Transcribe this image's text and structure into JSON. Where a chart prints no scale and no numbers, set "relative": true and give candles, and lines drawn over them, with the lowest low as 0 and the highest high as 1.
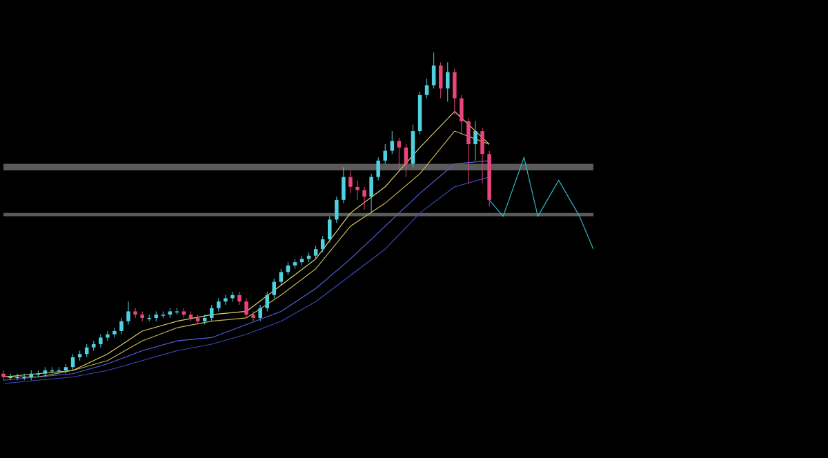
{
  "chart_data": {
    "type": "candlestick",
    "relative": true,
    "categories": [
      null,
      null,
      null,
      null,
      null,
      null,
      null,
      null,
      null,
      null,
      null,
      null,
      null,
      null,
      null,
      null,
      null,
      null,
      null,
      null,
      null,
      null,
      null,
      null,
      null,
      null,
      null,
      null,
      null,
      null,
      null,
      null,
      null,
      null,
      null,
      null,
      null,
      null,
      null,
      null,
      null,
      null,
      null,
      null,
      null,
      null,
      null,
      null,
      null,
      null,
      null,
      null,
      null,
      null,
      null,
      null,
      null,
      null,
      null,
      null,
      null,
      null,
      null,
      null,
      null,
      null,
      null,
      null,
      null,
      null,
      null,
      null,
      null,
      null,
      null,
      null,
      null,
      null,
      null,
      null,
      null,
      null,
      null,
      null,
      null,
      null
    ],
    "ohlc": [
      [
        0.02,
        0.03,
        0,
        0.01
      ],
      [
        0.01,
        0.02,
        0,
        0.01
      ],
      [
        0.01,
        0.02,
        0,
        0.01
      ],
      [
        0.01,
        0.02,
        0,
        0.01
      ],
      [
        0.01,
        0.03,
        0,
        0.02
      ],
      [
        0.02,
        0.03,
        0.01,
        0.02
      ],
      [
        0.02,
        0.04,
        0.01,
        0.03
      ],
      [
        0.03,
        0.04,
        0.02,
        0.03
      ],
      [
        0.03,
        0.04,
        0.02,
        0.03
      ],
      [
        0.03,
        0.05,
        0.02,
        0.04
      ],
      [
        0.04,
        0.08,
        0.03,
        0.07
      ],
      [
        0.07,
        0.09,
        0.06,
        0.08
      ],
      [
        0.08,
        0.11,
        0.07,
        0.1
      ],
      [
        0.1,
        0.12,
        0.09,
        0.11
      ],
      [
        0.11,
        0.14,
        0.1,
        0.13
      ],
      [
        0.13,
        0.15,
        0.12,
        0.14
      ],
      [
        0.14,
        0.16,
        0.13,
        0.15
      ],
      [
        0.15,
        0.19,
        0.14,
        0.18
      ],
      [
        0.18,
        0.24,
        0.17,
        0.21
      ],
      [
        0.21,
        0.22,
        0.19,
        0.2
      ],
      [
        0.2,
        0.21,
        0.18,
        0.19
      ],
      [
        0.19,
        0.2,
        0.18,
        0.19
      ],
      [
        0.19,
        0.21,
        0.18,
        0.2
      ],
      [
        0.2,
        0.21,
        0.19,
        0.2
      ],
      [
        0.2,
        0.22,
        0.19,
        0.21
      ],
      [
        0.21,
        0.22,
        0.2,
        0.21
      ],
      [
        0.21,
        0.22,
        0.19,
        0.2
      ],
      [
        0.2,
        0.21,
        0.18,
        0.19
      ],
      [
        0.19,
        0.2,
        0.17,
        0.18
      ],
      [
        0.18,
        0.2,
        0.17,
        0.19
      ],
      [
        0.19,
        0.23,
        0.18,
        0.22
      ],
      [
        0.22,
        0.25,
        0.21,
        0.24
      ],
      [
        0.24,
        0.26,
        0.23,
        0.25
      ],
      [
        0.25,
        0.27,
        0.24,
        0.26
      ],
      [
        0.26,
        0.27,
        0.23,
        0.24
      ],
      [
        0.24,
        0.25,
        0.19,
        0.2
      ],
      [
        0.2,
        0.21,
        0.18,
        0.19
      ],
      [
        0.19,
        0.23,
        0.18,
        0.22
      ],
      [
        0.22,
        0.27,
        0.21,
        0.26
      ],
      [
        0.26,
        0.31,
        0.25,
        0.3
      ],
      [
        0.3,
        0.34,
        0.29,
        0.33
      ],
      [
        0.33,
        0.36,
        0.32,
        0.35
      ],
      [
        0.35,
        0.37,
        0.34,
        0.36
      ],
      [
        0.36,
        0.38,
        0.35,
        0.37
      ],
      [
        0.37,
        0.39,
        0.36,
        0.38
      ],
      [
        0.38,
        0.41,
        0.37,
        0.4
      ],
      [
        0.4,
        0.44,
        0.39,
        0.43
      ],
      [
        0.43,
        0.5,
        0.42,
        0.49
      ],
      [
        0.49,
        0.56,
        0.48,
        0.55
      ],
      [
        0.55,
        0.65,
        0.54,
        0.62
      ],
      [
        0.62,
        0.64,
        0.57,
        0.59
      ],
      [
        0.59,
        0.61,
        0.55,
        0.58
      ],
      [
        0.58,
        0.59,
        0.52,
        0.56
      ],
      [
        0.56,
        0.63,
        0.51,
        0.62
      ],
      [
        0.62,
        0.68,
        0.61,
        0.67
      ],
      [
        0.67,
        0.72,
        0.66,
        0.7
      ],
      [
        0.7,
        0.76,
        0.69,
        0.73
      ],
      [
        0.73,
        0.74,
        0.64,
        0.71
      ],
      [
        0.71,
        0.72,
        0.62,
        0.66
      ],
      [
        0.66,
        0.78,
        0.65,
        0.76
      ],
      [
        0.76,
        0.88,
        0.75,
        0.87
      ],
      [
        0.87,
        0.92,
        0.86,
        0.9
      ],
      [
        0.9,
        1,
        0.89,
        0.96
      ],
      [
        0.96,
        0.97,
        0.86,
        0.89
      ],
      [
        0.89,
        0.97,
        0.85,
        0.94
      ],
      [
        0.94,
        0.95,
        0.81,
        0.86
      ],
      [
        0.86,
        0.87,
        0.75,
        0.79
      ],
      [
        0.79,
        0.8,
        0.6,
        0.72
      ],
      [
        0.72,
        0.79,
        0.67,
        0.76
      ],
      [
        0.76,
        0.77,
        0.6,
        0.69
      ],
      [
        0.69,
        0.7,
        0.53,
        0.55
      ],
      null,
      null,
      null,
      null,
      null,
      null,
      null,
      null,
      null,
      null,
      null,
      null,
      null,
      null,
      null
    ],
    "colors": [
      "#e8457c",
      "#4fd1e0",
      "#4fd1e0",
      "#4fd1e0",
      "#4fd1e0",
      "#4fd1e0",
      "#4fd1e0",
      "#4fd1e0",
      "#4fd1e0",
      "#4fd1e0",
      "#4fd1e0",
      "#4fd1e0",
      "#4fd1e0",
      "#4fd1e0",
      "#4fd1e0",
      "#4fd1e0",
      "#4fd1e0",
      "#4fd1e0",
      "#4fd1e0",
      "#e8457c",
      "#e8457c",
      "#4fd1e0",
      "#4fd1e0",
      "#4fd1e0",
      "#4fd1e0",
      "#4fd1e0",
      "#e8457c",
      "#e8457c",
      "#e8457c",
      "#4fd1e0",
      "#4fd1e0",
      "#4fd1e0",
      "#4fd1e0",
      "#4fd1e0",
      "#e8457c",
      "#e8457c",
      "#e8457c",
      "#4fd1e0",
      "#4fd1e0",
      "#4fd1e0",
      "#4fd1e0",
      "#4fd1e0",
      "#4fd1e0",
      "#4fd1e0",
      "#4fd1e0",
      "#4fd1e0",
      "#4fd1e0",
      "#4fd1e0",
      "#4fd1e0",
      "#4fd1e0",
      "#e8457c",
      "#e8457c",
      "#e8457c",
      "#4fd1e0",
      "#4fd1e0",
      "#4fd1e0",
      "#4fd1e0",
      "#e8457c",
      "#e8457c",
      "#4fd1e0",
      "#4fd1e0",
      "#4fd1e0",
      "#4fd1e0",
      "#e8457c",
      "#4fd1e0",
      "#e8457c",
      "#e8457c",
      "#e8457c",
      "#4fd1e0",
      "#e8457c",
      "#e8457c",
      null,
      null,
      null,
      null,
      null,
      null,
      null,
      null,
      null,
      null,
      null,
      null,
      null,
      null,
      null
    ],
    "series": [
      {
        "type": "line",
        "color": "#ded06a",
        "values": [
          0.01,
          null,
          null,
          null,
          null,
          0.02,
          null,
          null,
          null,
          null,
          0.03,
          null,
          null,
          null,
          null,
          0.08,
          null,
          null,
          null,
          null,
          0.15,
          null,
          null,
          null,
          null,
          0.18,
          null,
          null,
          null,
          null,
          0.2,
          null,
          null,
          null,
          null,
          0.21,
          null,
          null,
          null,
          null,
          0.29,
          null,
          null,
          null,
          null,
          0.37,
          null,
          null,
          null,
          null,
          0.51,
          null,
          null,
          null,
          null,
          0.59,
          null,
          null,
          null,
          null,
          0.71,
          null,
          null,
          null,
          null,
          0.82,
          null,
          null,
          null,
          null,
          0.72,
          null,
          null,
          null,
          null,
          null,
          null,
          null,
          null,
          null,
          null,
          null,
          null,
          null,
          null,
          null
        ]
      },
      {
        "type": "line",
        "color": "#c4b452",
        "values": [
          0.01,
          null,
          null,
          null,
          null,
          0.01,
          null,
          null,
          null,
          null,
          0.03,
          null,
          null,
          null,
          null,
          0.06,
          null,
          null,
          null,
          null,
          0.12,
          null,
          null,
          null,
          null,
          0.16,
          null,
          null,
          null,
          null,
          0.18,
          null,
          null,
          null,
          null,
          0.19,
          null,
          null,
          null,
          null,
          0.26,
          null,
          null,
          null,
          null,
          0.34,
          null,
          null,
          null,
          null,
          0.47,
          null,
          null,
          null,
          null,
          0.54,
          null,
          null,
          null,
          null,
          0.63,
          null,
          null,
          null,
          null,
          0.76,
          null,
          null,
          null,
          null,
          0.72,
          null,
          null,
          null,
          null,
          null,
          null,
          null,
          null,
          null,
          null,
          null,
          null,
          null,
          null,
          null
        ]
      },
      {
        "type": "line",
        "color": "#5560e0",
        "values": [
          0,
          null,
          null,
          null,
          null,
          0.01,
          null,
          null,
          null,
          null,
          0.02,
          null,
          null,
          null,
          null,
          0.05,
          null,
          null,
          null,
          null,
          0.09,
          null,
          null,
          null,
          null,
          0.12,
          null,
          null,
          null,
          null,
          0.13,
          null,
          null,
          null,
          null,
          0.17,
          null,
          null,
          null,
          null,
          0.21,
          null,
          null,
          null,
          null,
          0.28,
          null,
          null,
          null,
          null,
          0.37,
          null,
          null,
          null,
          null,
          0.47,
          null,
          null,
          null,
          null,
          0.57,
          null,
          null,
          null,
          null,
          0.66,
          null,
          null,
          null,
          null,
          0.67,
          null,
          null,
          null,
          null,
          null,
          null,
          null,
          null,
          null,
          null,
          null,
          null,
          null,
          null,
          null
        ]
      },
      {
        "type": "line",
        "color": "#3d46b8",
        "values": [
          -0.01,
          null,
          null,
          null,
          null,
          0,
          null,
          null,
          null,
          null,
          0.01,
          null,
          null,
          null,
          null,
          0.03,
          null,
          null,
          null,
          null,
          0.06,
          null,
          null,
          null,
          null,
          0.09,
          null,
          null,
          null,
          null,
          0.11,
          null,
          null,
          null,
          null,
          0.14,
          null,
          null,
          null,
          null,
          0.18,
          null,
          null,
          null,
          null,
          0.24,
          null,
          null,
          null,
          null,
          0.32,
          null,
          null,
          null,
          null,
          0.4,
          null,
          null,
          null,
          null,
          0.51,
          null,
          null,
          null,
          null,
          0.59,
          null,
          null,
          null,
          null,
          0.62,
          null,
          null,
          null,
          null,
          null,
          null,
          null,
          null,
          null,
          null,
          null,
          null,
          null,
          null,
          null
        ]
      },
      {
        "type": "line",
        "color": "#2fb8cc",
        "values": [
          null,
          null,
          null,
          null,
          null,
          null,
          null,
          null,
          null,
          null,
          null,
          null,
          null,
          null,
          null,
          null,
          null,
          null,
          null,
          null,
          null,
          null,
          null,
          null,
          null,
          null,
          null,
          null,
          null,
          null,
          null,
          null,
          null,
          null,
          null,
          null,
          null,
          null,
          null,
          null,
          null,
          null,
          null,
          null,
          null,
          null,
          null,
          null,
          null,
          null,
          null,
          null,
          null,
          null,
          null,
          null,
          null,
          null,
          null,
          null,
          null,
          null,
          null,
          null,
          null,
          null,
          null,
          null,
          null,
          null,
          0.55,
          null,
          0.5,
          null,
          null,
          0.68,
          null,
          0.5,
          null,
          null,
          0.61,
          null,
          null,
          0.5,
          null,
          0.4
        ]
      }
    ],
    "bands": [
      {
        "axis": "y",
        "from": 0.64,
        "to": 0.66,
        "color": "#5a5a5a"
      },
      {
        "axis": "y",
        "from": 0.5,
        "to": 0.51,
        "color": "#5a5a5a"
      }
    ]
  }
}
